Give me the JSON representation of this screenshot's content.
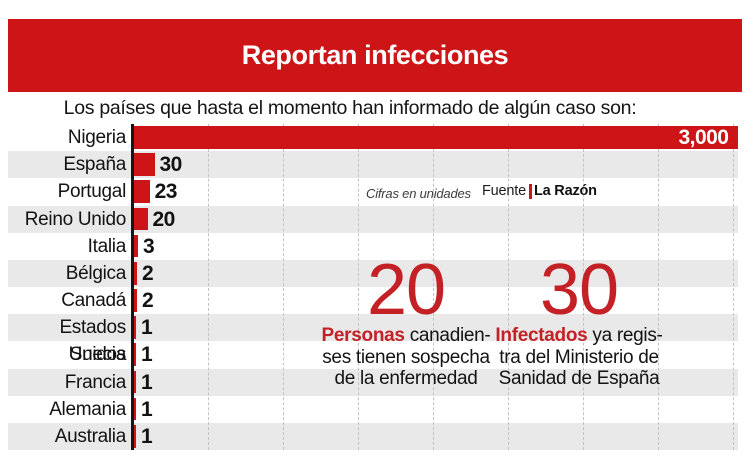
{
  "header": {
    "title": "Reportan infecciones"
  },
  "subtitle": "Los países que hasta el momento han informado de algún caso son:",
  "notes": {
    "units": "Cifras en unidades",
    "source_label": "Fuente",
    "source_name": "La Razón"
  },
  "chart_data": {
    "type": "bar",
    "orientation": "horizontal",
    "title": "Reportan infecciones",
    "subtitle": "Los países que hasta el momento han informado de algún caso son:",
    "categories": [
      "Nigeria",
      "España",
      "Portugal",
      "Reino Unido",
      "Italia",
      "Bélgica",
      "Canadá",
      "Estados Unidos",
      "Suecia",
      "Francia",
      "Alemania",
      "Australia"
    ],
    "values": [
      3000,
      30,
      23,
      20,
      3,
      2,
      2,
      1,
      1,
      1,
      1,
      1
    ],
    "value_labels": [
      "3,000",
      "30",
      "23",
      "20",
      "3",
      "2",
      "2",
      "1",
      "1",
      "1",
      "1",
      "1"
    ],
    "xlabel": "",
    "ylabel": "",
    "legend": false,
    "gridlines": "vertical-dashed",
    "striped_rows": true
  },
  "stats": [
    {
      "number": "20",
      "highlight": "Personas",
      "line1_rest": "canadien-",
      "lines": [
        "ses tienen sospecha",
        "de la enfermedad"
      ]
    },
    {
      "number": "30",
      "highlight": "Infectados",
      "line1_rest": "ya regis-",
      "lines": [
        "tra del Ministerio de",
        "Sanidad de España"
      ]
    }
  ],
  "colors": {
    "brand_red": "#cd1416",
    "stat_red": "#c42127",
    "band_gray": "#e9e9e9",
    "grid_gray": "#c3c3c3",
    "axis_black": "#161616",
    "text_black": "#131313",
    "bar_text_white": "#ffffff"
  }
}
